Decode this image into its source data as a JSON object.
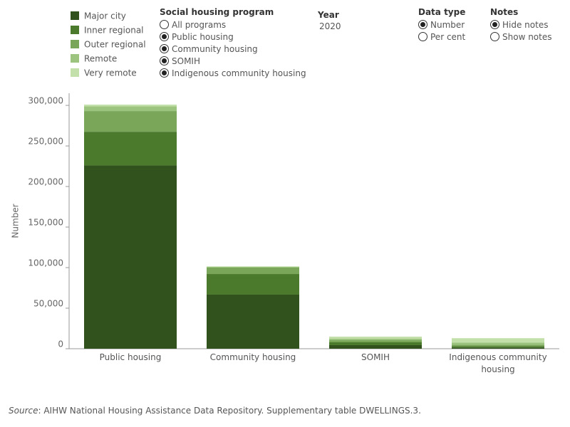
{
  "chart_data": {
    "type": "stacked_bar",
    "y_label": "Number",
    "categories": [
      "Public housing",
      "Community housing",
      "SOMIH",
      "Indigenous community housing"
    ],
    "series": [
      {
        "name": "Major city",
        "color": "#31521c",
        "values": [
          226000,
          66700,
          4400,
          1500
        ]
      },
      {
        "name": "Inner regional",
        "color": "#4b7a2d",
        "values": [
          41500,
          25400,
          3500,
          1500
        ]
      },
      {
        "name": "Outer regional",
        "color": "#7aa65a",
        "values": [
          25500,
          8000,
          2600,
          2000
        ]
      },
      {
        "name": "Remote",
        "color": "#9cc47e",
        "values": [
          6000,
          1000,
          1800,
          2500
        ]
      },
      {
        "name": "Very remote",
        "color": "#c4e0aa",
        "values": [
          2000,
          500,
          2600,
          5500
        ]
      }
    ],
    "ylim": [
      0,
      315000
    ],
    "yticks": [
      0,
      {
        "value": 50000,
        "label": "50,000"
      },
      {
        "value": 100000,
        "label": "100,000"
      },
      {
        "value": 150000,
        "label": "150,000"
      },
      {
        "value": 200000,
        "label": "200,000"
      },
      {
        "value": 250000,
        "label": "250,000"
      },
      {
        "value": 300000,
        "label": "300,000"
      }
    ],
    "grid": false
  },
  "controls": {
    "program": {
      "label": "Social housing program",
      "options": [
        {
          "label": "All programs",
          "checked": false
        },
        {
          "label": "Public housing",
          "checked": true
        },
        {
          "label": "Community housing",
          "checked": true
        },
        {
          "label": "SOMIH",
          "checked": true
        },
        {
          "label": "Indigenous community housing",
          "checked": true
        }
      ]
    },
    "year": {
      "label": "Year",
      "value": "2020"
    },
    "data_type": {
      "label": "Data type",
      "options": [
        {
          "label": "Number",
          "checked": true
        },
        {
          "label": "Per cent",
          "checked": false
        }
      ]
    },
    "notes": {
      "label": "Notes",
      "options": [
        {
          "label": "Hide notes",
          "checked": true
        },
        {
          "label": "Show notes",
          "checked": false
        }
      ]
    }
  },
  "source": {
    "label": "Source",
    "text": ": AIHW National Housing Assistance Data Repository. Supplementary table DWELLINGS.3."
  }
}
